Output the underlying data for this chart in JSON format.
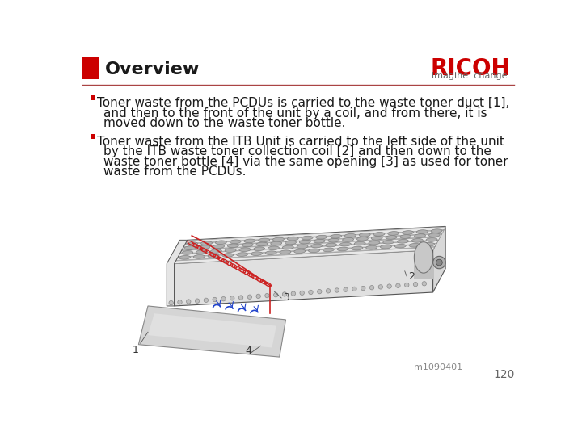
{
  "title": "Overview",
  "title_color": "#1a1a1a",
  "title_fontsize": 16,
  "header_rect_color": "#cc0000",
  "ricoh_text": "RICOH",
  "ricoh_subtitle": "imagine. change.",
  "ricoh_color": "#cc0000",
  "separator_color": "#aa4444",
  "background_color": "#ffffff",
  "bullet_color": "#cc0000",
  "bullet1_line1": "Toner waste from the PCDUs is carried to the waste toner duct [1],",
  "bullet1_line2": "and then to the front of the unit by a coil, and from there, it is",
  "bullet1_line3": "moved down to the waste toner bottle.",
  "bullet2_line1": "Toner waste from the ITB Unit is carried to the left side of the unit",
  "bullet2_line2": "by the ITB waste toner collection coil [2] and then down to the",
  "bullet2_line3": "waste toner bottle [4] via the same opening [3] as used for toner",
  "bullet2_line4": "waste from the PCDUs.",
  "page_number": "120",
  "image_label": "m1090401",
  "text_fontsize": 11,
  "body_text_color": "#1a1a1a"
}
